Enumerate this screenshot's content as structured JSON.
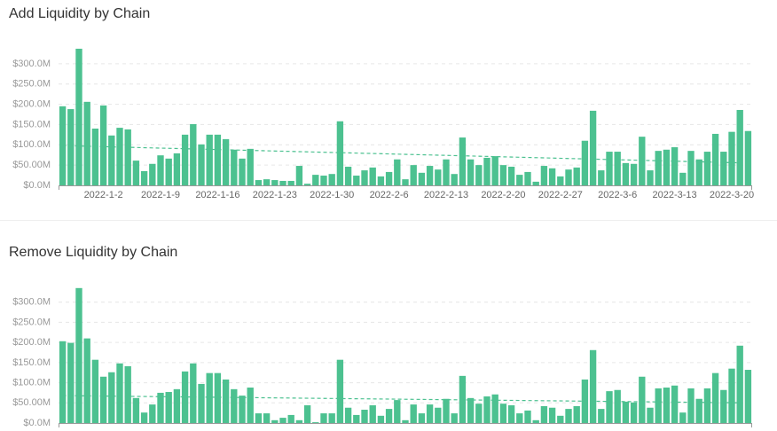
{
  "chart_data": [
    {
      "type": "bar",
      "title": "Add Liquidity by Chain",
      "color": "#4cc190",
      "grid": true,
      "categories": [
        null,
        null,
        null,
        null,
        null,
        "2022-1-2",
        null,
        null,
        null,
        null,
        null,
        null,
        "2022-1-9",
        null,
        null,
        null,
        null,
        null,
        null,
        "2022-1-16",
        null,
        null,
        null,
        null,
        null,
        null,
        "2022-1-23",
        null,
        null,
        null,
        null,
        null,
        null,
        "2022-1-30",
        null,
        null,
        null,
        null,
        null,
        null,
        "2022-2-6",
        null,
        null,
        null,
        null,
        null,
        null,
        "2022-2-13",
        null,
        null,
        null,
        null,
        null,
        null,
        "2022-2-20",
        null,
        null,
        null,
        null,
        null,
        null,
        "2022-2-27",
        null,
        null,
        null,
        null,
        null,
        null,
        "2022-3-6",
        null,
        null,
        null,
        null,
        null,
        null,
        "2022-3-13",
        null,
        null,
        null,
        null,
        null,
        null,
        "2022-3-20",
        null,
        null
      ],
      "values": [
        195,
        188,
        337,
        206,
        140,
        197,
        123,
        142,
        138,
        61,
        35,
        53,
        74,
        66,
        79,
        125,
        151,
        101,
        125,
        125,
        114,
        88,
        66,
        90,
        13,
        15,
        13,
        11,
        11,
        48,
        4,
        26,
        24,
        28,
        158,
        46,
        24,
        37,
        44,
        22,
        33,
        64,
        15,
        50,
        31,
        48,
        39,
        64,
        28,
        118,
        64,
        50,
        68,
        72,
        50,
        46,
        26,
        33,
        9,
        48,
        42,
        22,
        39,
        44,
        110,
        184,
        37,
        83,
        83,
        55,
        53,
        120,
        37,
        85,
        88,
        94,
        31,
        85,
        64,
        83,
        127,
        83,
        132,
        186,
        134
      ],
      "trend": [
        98,
        55
      ],
      "ylim": [
        0,
        350
      ],
      "yticks": [
        {
          "value": 0,
          "label": "$0.0M"
        },
        {
          "value": 50,
          "label": "$50.00M"
        },
        {
          "value": 100,
          "label": "$100.0M"
        },
        {
          "value": 150,
          "label": "$150.0M"
        },
        {
          "value": 200,
          "label": "$200.0M"
        },
        {
          "value": 250,
          "label": "$250.0M"
        },
        {
          "value": 300,
          "label": "$300.0M"
        }
      ]
    },
    {
      "type": "bar",
      "title": "Remove Liquidity by Chain",
      "color": "#4cc190",
      "grid": true,
      "values": [
        203,
        199,
        335,
        210,
        157,
        115,
        126,
        148,
        141,
        62,
        26,
        46,
        75,
        77,
        84,
        128,
        148,
        97,
        124,
        124,
        108,
        84,
        68,
        88,
        24,
        24,
        7,
        13,
        20,
        7,
        44,
        2,
        24,
        24,
        157,
        38,
        20,
        33,
        44,
        18,
        35,
        57,
        7,
        46,
        24,
        46,
        38,
        60,
        24,
        117,
        62,
        48,
        66,
        71,
        48,
        44,
        24,
        31,
        7,
        42,
        38,
        18,
        35,
        42,
        108,
        181,
        35,
        79,
        82,
        53,
        51,
        115,
        38,
        86,
        88,
        93,
        26,
        86,
        60,
        86,
        124,
        82,
        135,
        192,
        132
      ],
      "trend": [
        68,
        50
      ],
      "ylim": [
        0,
        350
      ],
      "yticks": [
        {
          "value": 0,
          "label": "$0.0M"
        },
        {
          "value": 50,
          "label": "$50.00M"
        },
        {
          "value": 100,
          "label": "$100.0M"
        },
        {
          "value": 150,
          "label": "$150.0M"
        },
        {
          "value": 200,
          "label": "$200.0M"
        },
        {
          "value": 250,
          "label": "$250.0M"
        },
        {
          "value": 300,
          "label": "$300.0M"
        }
      ]
    }
  ]
}
